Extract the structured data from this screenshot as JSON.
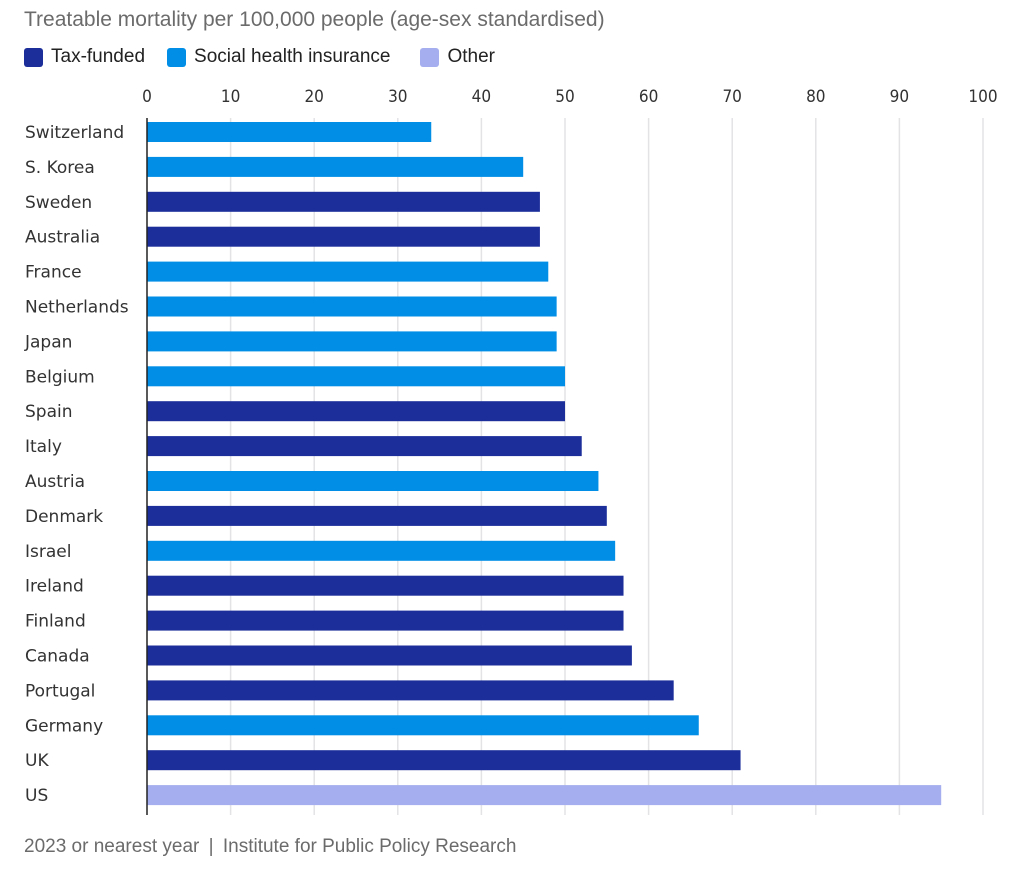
{
  "chart_data": {
    "type": "bar",
    "orientation": "horizontal",
    "title": "Treatable mortality per 100,000 people (age-sex standardised)",
    "legend": [
      {
        "name": "Tax-funded",
        "color": "#1c2e9a"
      },
      {
        "name": "Social health insurance",
        "color": "#008ee6"
      },
      {
        "name": "Other",
        "color": "#a5aeee"
      }
    ],
    "legend_position": "top-left",
    "xlim": [
      0,
      100
    ],
    "xticks": [
      0,
      10,
      20,
      30,
      40,
      50,
      60,
      70,
      80,
      90,
      100
    ],
    "grid": true,
    "categories": [
      "Switzerland",
      "S. Korea",
      "Sweden",
      "Australia",
      "France",
      "Netherlands",
      "Japan",
      "Belgium",
      "Spain",
      "Italy",
      "Austria",
      "Denmark",
      "Israel",
      "Ireland",
      "Finland",
      "Canada",
      "Portugal",
      "Germany",
      "UK",
      "US"
    ],
    "values": [
      34,
      45,
      47,
      47,
      48,
      49,
      49,
      50,
      50,
      52,
      54,
      55,
      56,
      57,
      57,
      58,
      63,
      66,
      71,
      95
    ],
    "groups": [
      "Social health insurance",
      "Social health insurance",
      "Tax-funded",
      "Tax-funded",
      "Social health insurance",
      "Social health insurance",
      "Social health insurance",
      "Social health insurance",
      "Tax-funded",
      "Tax-funded",
      "Social health insurance",
      "Tax-funded",
      "Social health insurance",
      "Tax-funded",
      "Tax-funded",
      "Tax-funded",
      "Tax-funded",
      "Social health insurance",
      "Tax-funded",
      "Other"
    ]
  },
  "footer": {
    "note": "2023 or nearest year",
    "separator": "|",
    "source": "Institute for Public Policy Research"
  }
}
